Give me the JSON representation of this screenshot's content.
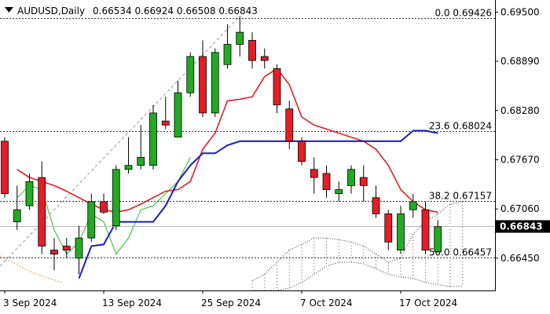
{
  "header": {
    "symbol_label": "AUDUSD,Daily",
    "ohlc_label": "0.66534 0.66924 0.66508 0.66843",
    "menu_icon": "triangle-down-icon"
  },
  "current_price": {
    "value": 0.66843,
    "label": "0.66843",
    "bg": "#000000"
  },
  "fibonacci": [
    {
      "value": 0.69426,
      "label": "0.0 0.69426"
    },
    {
      "value": 0.68024,
      "label": "23.6 0.68024"
    },
    {
      "value": 0.67157,
      "label": "38.2 0.67157"
    },
    {
      "value": 0.66457,
      "label": "50.0 0.66457"
    }
  ],
  "chart_data": {
    "type": "candlestick",
    "symbol": "AUDUSD",
    "timeframe": "Daily",
    "ylim": [
      0.6605,
      0.6965
    ],
    "y_ticks": [
      {
        "value": 0.695,
        "label": "0.69500"
      },
      {
        "value": 0.6889,
        "label": "0.68890"
      },
      {
        "value": 0.6828,
        "label": "0.68280"
      },
      {
        "value": 0.6767,
        "label": "0.67670"
      },
      {
        "value": 0.6706,
        "label": "0.67060"
      },
      {
        "value": 0.6645,
        "label": "0.66450"
      }
    ],
    "x_ticks": [
      {
        "index": 0,
        "label": "3 Sep 2024"
      },
      {
        "index": 8,
        "label": "13 Sep 2024"
      },
      {
        "index": 16,
        "label": "25 Sep 2024"
      },
      {
        "index": 24,
        "label": "7 Oct 2024"
      },
      {
        "index": 32,
        "label": "17 Oct 2024"
      }
    ],
    "up_color": "#22aa22",
    "down_color": "#e31e24",
    "candles": [
      {
        "o": 0.679,
        "h": 0.6795,
        "l": 0.672,
        "c": 0.6725
      },
      {
        "o": 0.669,
        "h": 0.6735,
        "l": 0.668,
        "c": 0.6705
      },
      {
        "o": 0.671,
        "h": 0.675,
        "l": 0.6705,
        "c": 0.674
      },
      {
        "o": 0.6745,
        "h": 0.6765,
        "l": 0.665,
        "c": 0.666
      },
      {
        "o": 0.6655,
        "h": 0.667,
        "l": 0.663,
        "c": 0.665
      },
      {
        "o": 0.666,
        "h": 0.667,
        "l": 0.6645,
        "c": 0.6655
      },
      {
        "o": 0.6645,
        "h": 0.6685,
        "l": 0.6625,
        "c": 0.667
      },
      {
        "o": 0.667,
        "h": 0.6725,
        "l": 0.6665,
        "c": 0.6715
      },
      {
        "o": 0.6715,
        "h": 0.6725,
        "l": 0.67,
        "c": 0.6702
      },
      {
        "o": 0.6685,
        "h": 0.676,
        "l": 0.668,
        "c": 0.6755
      },
      {
        "o": 0.6755,
        "h": 0.6795,
        "l": 0.675,
        "c": 0.676
      },
      {
        "o": 0.676,
        "h": 0.681,
        "l": 0.6755,
        "c": 0.677
      },
      {
        "o": 0.676,
        "h": 0.6835,
        "l": 0.6755,
        "c": 0.6825
      },
      {
        "o": 0.6815,
        "h": 0.6845,
        "l": 0.6805,
        "c": 0.681
      },
      {
        "o": 0.6795,
        "h": 0.6865,
        "l": 0.6795,
        "c": 0.685
      },
      {
        "o": 0.685,
        "h": 0.69,
        "l": 0.6845,
        "c": 0.6895
      },
      {
        "o": 0.6895,
        "h": 0.6915,
        "l": 0.682,
        "c": 0.6825
      },
      {
        "o": 0.6825,
        "h": 0.6905,
        "l": 0.682,
        "c": 0.69
      },
      {
        "o": 0.6885,
        "h": 0.6935,
        "l": 0.688,
        "c": 0.691
      },
      {
        "o": 0.691,
        "h": 0.6945,
        "l": 0.6895,
        "c": 0.6925
      },
      {
        "o": 0.6915,
        "h": 0.6925,
        "l": 0.688,
        "c": 0.689
      },
      {
        "o": 0.6895,
        "h": 0.6905,
        "l": 0.688,
        "c": 0.689
      },
      {
        "o": 0.688,
        "h": 0.6885,
        "l": 0.6825,
        "c": 0.6835
      },
      {
        "o": 0.683,
        "h": 0.684,
        "l": 0.678,
        "c": 0.679
      },
      {
        "o": 0.679,
        "h": 0.6795,
        "l": 0.676,
        "c": 0.6765
      },
      {
        "o": 0.6755,
        "h": 0.677,
        "l": 0.6725,
        "c": 0.6745
      },
      {
        "o": 0.675,
        "h": 0.676,
        "l": 0.672,
        "c": 0.673
      },
      {
        "o": 0.6725,
        "h": 0.674,
        "l": 0.6715,
        "c": 0.673
      },
      {
        "o": 0.6735,
        "h": 0.676,
        "l": 0.6725,
        "c": 0.6755
      },
      {
        "o": 0.6745,
        "h": 0.676,
        "l": 0.6715,
        "c": 0.6735
      },
      {
        "o": 0.672,
        "h": 0.6735,
        "l": 0.6695,
        "c": 0.67
      },
      {
        "o": 0.67,
        "h": 0.6705,
        "l": 0.6655,
        "c": 0.6665
      },
      {
        "o": 0.6655,
        "h": 0.671,
        "l": 0.665,
        "c": 0.67
      },
      {
        "o": 0.6705,
        "h": 0.6725,
        "l": 0.6695,
        "c": 0.6715
      },
      {
        "o": 0.6705,
        "h": 0.6715,
        "l": 0.665,
        "c": 0.6655
      },
      {
        "o": 0.6653,
        "h": 0.6692,
        "l": 0.6651,
        "c": 0.6684
      }
    ],
    "red_line": [
      null,
      0.6755,
      0.6745,
      0.674,
      0.6735,
      0.6728,
      0.672,
      0.6712,
      0.6705,
      0.6702,
      0.6705,
      0.6712,
      0.672,
      0.6728,
      0.673,
      0.674,
      0.678,
      0.68,
      0.684,
      0.6842,
      0.6845,
      0.687,
      0.688,
      0.686,
      0.682,
      0.681,
      0.6805,
      0.68,
      0.6795,
      0.679,
      0.678,
      0.676,
      0.673,
      0.6715,
      0.6705,
      0.6702
    ],
    "blue_line": [
      null,
      null,
      null,
      null,
      null,
      null,
      0.662,
      0.666,
      0.6662,
      0.669,
      0.669,
      0.669,
      0.669,
      0.671,
      0.674,
      0.676,
      0.6775,
      0.6775,
      0.6785,
      0.679,
      0.679,
      0.679,
      0.679,
      0.679,
      0.679,
      0.679,
      0.679,
      0.679,
      0.679,
      0.679,
      0.679,
      0.679,
      0.679,
      0.6803,
      0.6803,
      0.68
    ],
    "green_line": [
      null,
      0.672,
      0.6735,
      0.673,
      0.668,
      0.665,
      0.6665,
      0.67,
      0.669,
      0.665,
      0.667,
      0.6705,
      0.671,
      0.6725,
      0.674,
      0.677
    ],
    "cloud_top": [
      null,
      null,
      null,
      null,
      null,
      null,
      null,
      null,
      null,
      null,
      null,
      null,
      null,
      null,
      null,
      null,
      null,
      null,
      null,
      null,
      0.6617,
      0.6625,
      0.664,
      0.6655,
      0.6662,
      0.667,
      0.667,
      0.6668,
      0.6665,
      0.666,
      0.665,
      0.664,
      0.6645,
      0.6675,
      0.669,
      0.67,
      0.6712,
      0.6715
    ],
    "cloud_bottom": [
      null,
      null,
      null,
      null,
      null,
      null,
      null,
      null,
      null,
      null,
      null,
      null,
      null,
      null,
      null,
      null,
      null,
      null,
      null,
      null,
      0.6605,
      0.6605,
      0.6605,
      0.6608,
      0.6615,
      0.6625,
      0.6635,
      0.664,
      0.664,
      0.6638,
      0.6632,
      0.6625,
      0.6622,
      0.662,
      0.6615,
      0.6612,
      0.661,
      0.661
    ],
    "orange_line": [
      0.6648,
      0.664,
      0.6632,
      0.6625,
      0.662,
      0.6615
    ]
  }
}
